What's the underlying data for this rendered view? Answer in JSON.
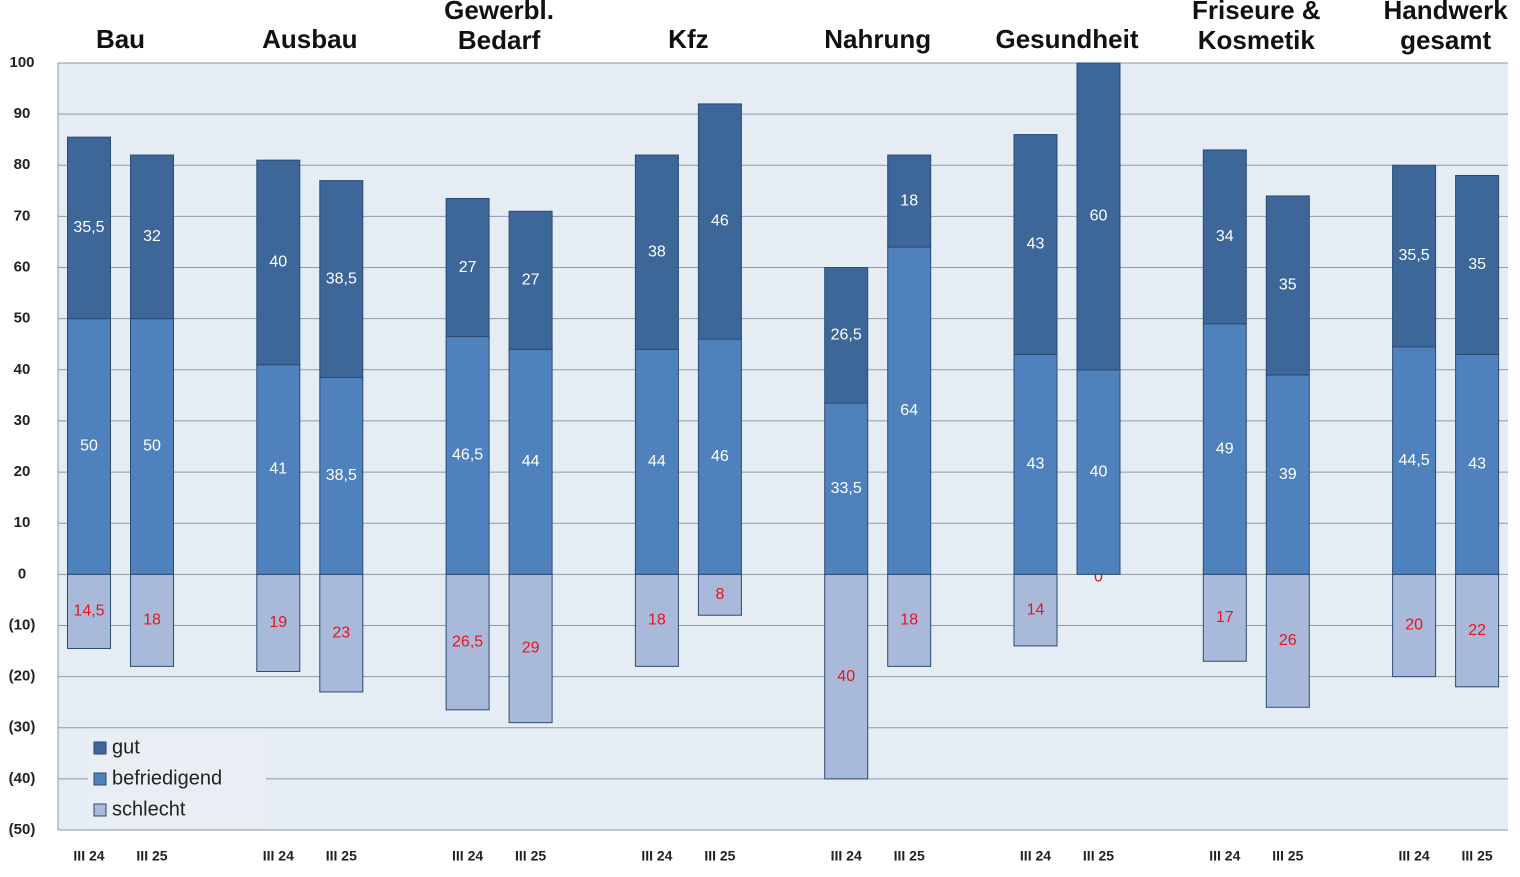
{
  "chart_data": {
    "type": "stacked-bar",
    "groups": [
      [
        "Bau"
      ],
      [
        "Ausbau"
      ],
      [
        "Gewerbl.",
        "Bedarf"
      ],
      [
        "Kfz"
      ],
      [
        "Nahrung"
      ],
      [
        "Gesundheit"
      ],
      [
        "Friseure &",
        "Kosmetik"
      ],
      [
        "Handwerk",
        "gesamt"
      ]
    ],
    "categories": [
      "III 24",
      "III 25",
      "III 24",
      "III 25",
      "III 24",
      "III 25",
      "III 24",
      "III 25",
      "III 24",
      "III 25",
      "III 24",
      "III 25",
      "III 24",
      "III 25",
      "III 24",
      "III 25"
    ],
    "series": [
      {
        "name": "gut",
        "color": "#3d6699",
        "label_color": "#ffffff",
        "values": [
          35.5,
          32,
          40,
          38.5,
          27,
          27,
          38,
          46,
          26.5,
          18,
          43,
          60,
          34,
          35,
          35.5,
          35
        ],
        "value_labels": [
          "35,5",
          "32",
          "40",
          "38,5",
          "27",
          "27",
          "38",
          "46",
          "26,5",
          "18",
          "43",
          "60",
          "34",
          "35",
          "35,5",
          "35"
        ]
      },
      {
        "name": "befriedigend",
        "color": "#4f81bd",
        "label_color": "#ffffff",
        "values": [
          50,
          50,
          41,
          38.5,
          46.5,
          44,
          44,
          46,
          33.5,
          64,
          43,
          40,
          49,
          39,
          44.5,
          43
        ],
        "value_labels": [
          "50",
          "50",
          "41",
          "38,5",
          "46,5",
          "44",
          "44",
          "46",
          "33,5",
          "64",
          "43",
          "40",
          "49",
          "39",
          "44,5",
          "43"
        ]
      },
      {
        "name": "schlecht",
        "color": "#a9b9da",
        "label_color": "#e8141c",
        "values": [
          -14.5,
          -18,
          -19,
          -23,
          -26.5,
          -29,
          -18,
          -8,
          -40,
          -18,
          -14,
          0,
          -17,
          -26,
          -20,
          -22
        ],
        "value_labels": [
          "14,5",
          "18",
          "19",
          "23",
          "26,5",
          "29",
          "18",
          "8",
          "40",
          "18",
          "14",
          "0",
          "17",
          "26",
          "20",
          "22"
        ]
      }
    ],
    "ylim": [
      -50,
      100
    ],
    "yticks": [
      {
        "value": -50,
        "label": "(50)"
      },
      {
        "value": -40,
        "label": "(40)"
      },
      {
        "value": -30,
        "label": "(30)"
      },
      {
        "value": -20,
        "label": "(20)"
      },
      {
        "value": -10,
        "label": "(10)"
      },
      0,
      10,
      20,
      30,
      40,
      50,
      60,
      70,
      80,
      90,
      100
    ],
    "grid": true,
    "legend": "lower left"
  }
}
